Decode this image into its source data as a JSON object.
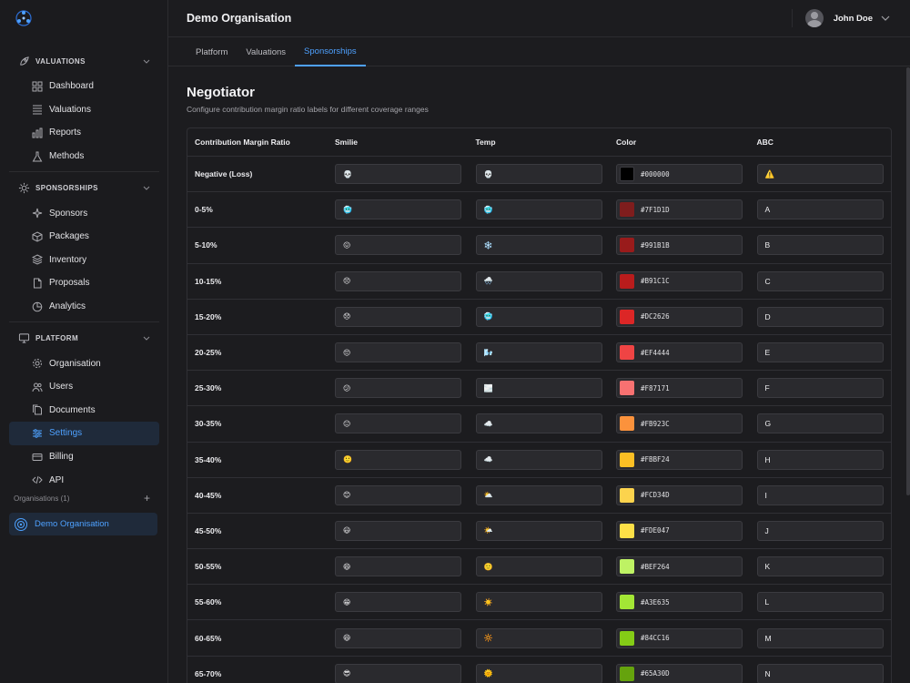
{
  "org": {
    "name": "Demo Organisation"
  },
  "user": {
    "name": "John Doe"
  },
  "sidebar": {
    "sections": [
      {
        "label": "VALUATIONS",
        "icon": "rocket-icon",
        "items": [
          {
            "label": "Dashboard",
            "icon": "dashboard-icon"
          },
          {
            "label": "Valuations",
            "icon": "list-icon"
          },
          {
            "label": "Reports",
            "icon": "bar-chart-icon"
          },
          {
            "label": "Methods",
            "icon": "flask-icon"
          }
        ]
      },
      {
        "label": "SPONSORSHIPS",
        "icon": "sun-icon",
        "items": [
          {
            "label": "Sponsors",
            "icon": "sparkles-icon"
          },
          {
            "label": "Packages",
            "icon": "cube-icon"
          },
          {
            "label": "Inventory",
            "icon": "layers-icon"
          },
          {
            "label": "Proposals",
            "icon": "document-icon"
          },
          {
            "label": "Analytics",
            "icon": "pie-chart-icon"
          }
        ]
      },
      {
        "label": "PLATFORM",
        "icon": "monitor-icon",
        "items": [
          {
            "label": "Organisation",
            "icon": "gear-icon"
          },
          {
            "label": "Users",
            "icon": "users-icon"
          },
          {
            "label": "Documents",
            "icon": "documents-icon"
          },
          {
            "label": "Settings",
            "icon": "sliders-icon"
          },
          {
            "label": "Billing",
            "icon": "credit-card-icon"
          },
          {
            "label": "API",
            "icon": "code-icon"
          }
        ]
      }
    ],
    "active_item": "Settings",
    "orgs_label": "Organisations (1)",
    "org_item": "Demo Organisation"
  },
  "tabs": [
    {
      "label": "Platform"
    },
    {
      "label": "Valuations"
    },
    {
      "label": "Sponsorships"
    }
  ],
  "active_tab": "Sponsorships",
  "page": {
    "title": "Negotiator",
    "subtitle": "Configure contribution margin ratio labels for different coverage ranges"
  },
  "table": {
    "headers": [
      "Contribution Margin Ratio",
      "Smilie",
      "Temp",
      "Color",
      "ABC"
    ],
    "rows": [
      {
        "range": "Negative (Loss)",
        "smilie": "💀",
        "temp": "💀",
        "color": "#000000",
        "abc": "⚠️"
      },
      {
        "range": "0-5%",
        "smilie": "🥶",
        "temp": "🥶",
        "color": "#7F1D1D",
        "abc": "A"
      },
      {
        "range": "5-10%",
        "smilie": "😖",
        "temp": "❄️",
        "color": "#991B1B",
        "abc": "B"
      },
      {
        "range": "10-15%",
        "smilie": "😣",
        "temp": "🌨️",
        "color": "#B91C1C",
        "abc": "C"
      },
      {
        "range": "15-20%",
        "smilie": "😞",
        "temp": "🥶",
        "color": "#DC2626",
        "abc": "D"
      },
      {
        "range": "20-25%",
        "smilie": "😔",
        "temp": "🌬️",
        "color": "#EF4444",
        "abc": "E"
      },
      {
        "range": "25-30%",
        "smilie": "😕",
        "temp": "🌫️",
        "color": "#F87171",
        "abc": "F"
      },
      {
        "range": "30-35%",
        "smilie": "😐",
        "temp": "☁️",
        "color": "#FB923C",
        "abc": "G"
      },
      {
        "range": "35-40%",
        "smilie": "🙂",
        "temp": "☁️",
        "color": "#FBBF24",
        "abc": "H"
      },
      {
        "range": "40-45%",
        "smilie": "😊",
        "temp": "⛅",
        "color": "#FCD34D",
        "abc": "I"
      },
      {
        "range": "45-50%",
        "smilie": "😃",
        "temp": "🌤️",
        "color": "#FDE047",
        "abc": "J"
      },
      {
        "range": "50-55%",
        "smilie": "😄",
        "temp": "🙂",
        "color": "#BEF264",
        "abc": "K"
      },
      {
        "range": "55-60%",
        "smilie": "😁",
        "temp": "☀️",
        "color": "#A3E635",
        "abc": "L"
      },
      {
        "range": "60-65%",
        "smilie": "😆",
        "temp": "🔆",
        "color": "#84CC16",
        "abc": "M"
      },
      {
        "range": "65-70%",
        "smilie": "😎",
        "temp": "🌞",
        "color": "#65A30D",
        "abc": "N"
      }
    ]
  }
}
